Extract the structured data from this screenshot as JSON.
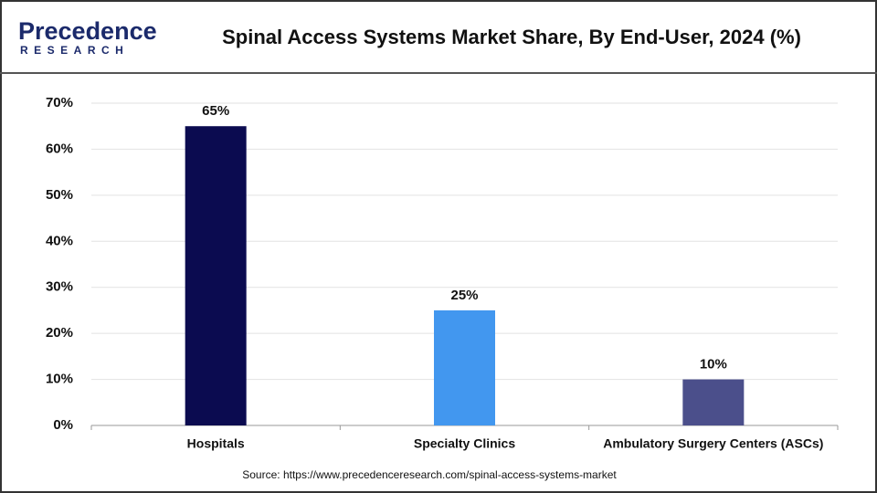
{
  "logo": {
    "name": "Precedence",
    "tagline": "RESEARCH"
  },
  "chart_data": {
    "type": "bar",
    "title": "Spinal Access Systems Market Share, By End-User, 2024 (%)",
    "categories": [
      "Hospitals",
      "Specialty Clinics",
      "Ambulatory Surgery Centers (ASCs)"
    ],
    "values": [
      65,
      25,
      10
    ],
    "value_labels": [
      "65%",
      "25%",
      "10%"
    ],
    "colors": [
      "#0b0b50",
      "#4297ef",
      "#4b4f8b"
    ],
    "ylim": [
      0,
      70
    ],
    "yticks": [
      {
        "value": 0,
        "label": "0%"
      },
      {
        "value": 10,
        "label": "10%"
      },
      {
        "value": 20,
        "label": "20%"
      },
      {
        "value": 30,
        "label": "30%"
      },
      {
        "value": 40,
        "label": "40%"
      },
      {
        "value": 50,
        "label": "50%"
      },
      {
        "value": 60,
        "label": "60%"
      },
      {
        "value": 70,
        "label": "70%"
      }
    ],
    "grid": true,
    "source": "Source: https://www.precedenceresearch.com/spinal-access-systems-market"
  }
}
